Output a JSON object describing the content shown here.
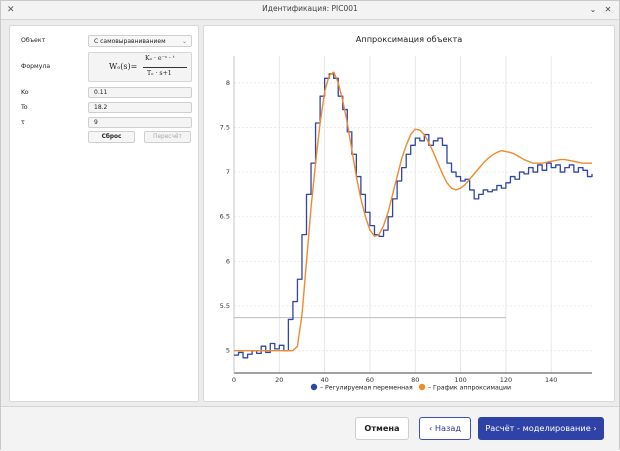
{
  "window": {
    "title": "Идентификация: PIC001",
    "app_icon": "app-logo-icon",
    "controls": [
      "minimize-icon",
      "close-icon"
    ]
  },
  "left": {
    "object_label": "Объект",
    "object_value": "С самовыравниванием",
    "formula_label": "Формула",
    "formula": {
      "lhs": "Wₒ(s)=",
      "numerator": "Kₒ · e⁻ˢ · ᵗ",
      "denominator": "Tₒ · s+1"
    },
    "ko_label": "Ko",
    "ko_value": "0.11",
    "to_label": "To",
    "to_value": "18.2",
    "tau_label": "τ",
    "tau_value": "9",
    "reset_label": "Сброс",
    "recalc_label": "Пересчёт"
  },
  "chart": {
    "title": "Аппроксимация объекта",
    "legend": [
      {
        "label": "– Регулируемая переменная",
        "color": "#2f45a8"
      },
      {
        "label": "– График аппроксимации",
        "color": "#f08a2c"
      }
    ]
  },
  "chart_data": {
    "type": "line",
    "title": "Аппроксимация объекта",
    "xlim": [
      0,
      158
    ],
    "ylim": [
      4.75,
      8.3
    ],
    "x_ticks": [
      0,
      20,
      40,
      60,
      80,
      100,
      120,
      140
    ],
    "y_ticks": [
      5,
      5.5,
      6,
      6.5,
      7,
      7.5,
      8
    ],
    "reference_line_y": 5.37,
    "series": [
      {
        "name": "– Регулируемая переменная",
        "color": "#2f45a8",
        "x": [
          0,
          2,
          4,
          6,
          8,
          10,
          12,
          14,
          16,
          18,
          20,
          22,
          24,
          26,
          28,
          30,
          32,
          34,
          36,
          38,
          40,
          42,
          44,
          46,
          48,
          50,
          52,
          54,
          56,
          58,
          60,
          62,
          64,
          66,
          68,
          70,
          72,
          74,
          76,
          78,
          80,
          82,
          84,
          86,
          88,
          90,
          92,
          94,
          96,
          98,
          100,
          102,
          104,
          106,
          108,
          110,
          112,
          114,
          116,
          118,
          120,
          122,
          124,
          126,
          128,
          130,
          132,
          134,
          136,
          138,
          140,
          142,
          144,
          146,
          148,
          150,
          152,
          154,
          156,
          158
        ],
        "y": [
          4.95,
          4.98,
          4.92,
          4.96,
          5.0,
          4.97,
          5.05,
          4.98,
          5.08,
          5.02,
          5.06,
          5.0,
          5.35,
          5.55,
          5.8,
          6.3,
          6.75,
          7.1,
          7.55,
          7.85,
          8.05,
          8.1,
          8.05,
          7.85,
          7.7,
          7.45,
          7.2,
          6.95,
          6.75,
          6.55,
          6.4,
          6.3,
          6.28,
          6.35,
          6.5,
          6.7,
          6.9,
          7.05,
          7.2,
          7.3,
          7.38,
          7.35,
          7.42,
          7.3,
          7.35,
          7.38,
          7.3,
          7.1,
          7.0,
          6.95,
          6.9,
          6.92,
          6.8,
          6.7,
          6.75,
          6.8,
          6.78,
          6.8,
          6.85,
          6.82,
          6.88,
          6.95,
          6.92,
          7.0,
          6.98,
          7.05,
          7.0,
          7.08,
          7.02,
          7.1,
          7.05,
          7.08,
          7.0,
          7.05,
          7.08,
          7.0,
          7.05,
          7.02,
          6.95,
          6.98
        ]
      },
      {
        "name": "– График аппроксимации",
        "color": "#f08a2c",
        "x": [
          0,
          2,
          4,
          6,
          8,
          10,
          12,
          14,
          16,
          18,
          20,
          22,
          24,
          26,
          28,
          30,
          32,
          34,
          36,
          38,
          40,
          42,
          44,
          46,
          48,
          50,
          52,
          54,
          56,
          58,
          60,
          62,
          64,
          66,
          68,
          70,
          72,
          74,
          76,
          78,
          80,
          82,
          84,
          86,
          88,
          90,
          92,
          94,
          96,
          98,
          100,
          102,
          104,
          106,
          108,
          110,
          112,
          114,
          116,
          118,
          120,
          122,
          124,
          126,
          128,
          130,
          132,
          134,
          136,
          138,
          140,
          142,
          144,
          146,
          148,
          150,
          152,
          154,
          156,
          158
        ],
        "y": [
          5.0,
          5.0,
          5.0,
          5.0,
          5.0,
          5.0,
          5.0,
          5.0,
          5.0,
          5.0,
          5.0,
          5.0,
          5.0,
          5.0,
          5.05,
          5.4,
          6.0,
          6.6,
          7.1,
          7.55,
          7.9,
          8.08,
          8.12,
          8.0,
          7.8,
          7.55,
          7.25,
          6.95,
          6.7,
          6.5,
          6.35,
          6.28,
          6.3,
          6.4,
          6.55,
          6.75,
          6.95,
          7.15,
          7.3,
          7.42,
          7.48,
          7.47,
          7.42,
          7.33,
          7.22,
          7.1,
          6.98,
          6.88,
          6.82,
          6.8,
          6.82,
          6.86,
          6.92,
          6.98,
          7.04,
          7.1,
          7.15,
          7.19,
          7.22,
          7.24,
          7.23,
          7.22,
          7.2,
          7.17,
          7.14,
          7.12,
          7.1,
          7.1,
          7.1,
          7.11,
          7.12,
          7.13,
          7.14,
          7.14,
          7.13,
          7.12,
          7.11,
          7.1,
          7.1,
          7.1
        ]
      }
    ]
  },
  "footer": {
    "cancel_label": "Отмена",
    "back_label": "Назад",
    "next_label": "Расчёт - моделирование"
  }
}
